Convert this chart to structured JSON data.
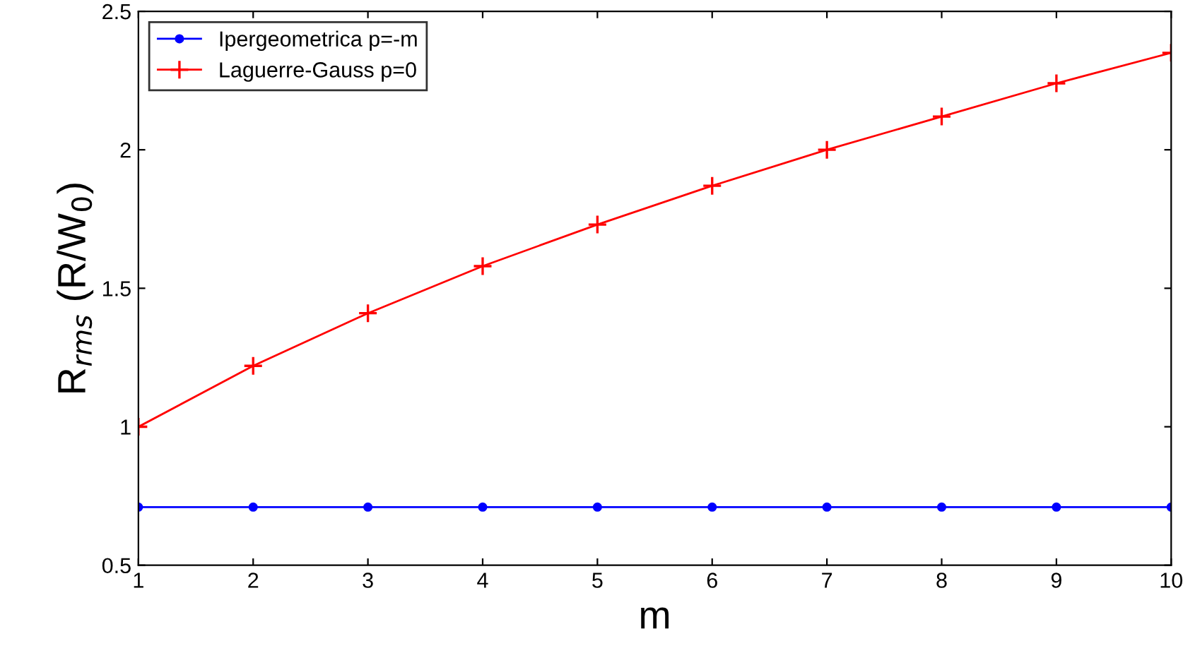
{
  "chart_data": {
    "type": "line",
    "xlabel": "m",
    "ylabel": "R$_{rms}$ (R/W$_{0}$)",
    "x": [
      1,
      2,
      3,
      4,
      5,
      6,
      7,
      8,
      9,
      10
    ],
    "series": [
      {
        "name": "Ipergeometrica p=-m",
        "color": "#0000ff",
        "marker": "circle",
        "values": [
          0.71,
          0.71,
          0.71,
          0.71,
          0.71,
          0.71,
          0.71,
          0.71,
          0.71,
          0.71
        ]
      },
      {
        "name": "Laguerre-Gauss p=0",
        "color": "#ff0000",
        "marker": "cross",
        "values": [
          1.0,
          1.22,
          1.41,
          1.58,
          1.73,
          1.87,
          2.0,
          2.12,
          2.24,
          2.35
        ]
      }
    ],
    "xlim": [
      1,
      10
    ],
    "ylim": [
      0.5,
      2.5
    ],
    "xticks": [
      1,
      2,
      3,
      4,
      5,
      6,
      7,
      8,
      9,
      10
    ],
    "yticks": [
      0.5,
      1,
      1.5,
      2,
      2.5
    ],
    "grid": false,
    "legend": "top left",
    "line_style": "solid"
  }
}
